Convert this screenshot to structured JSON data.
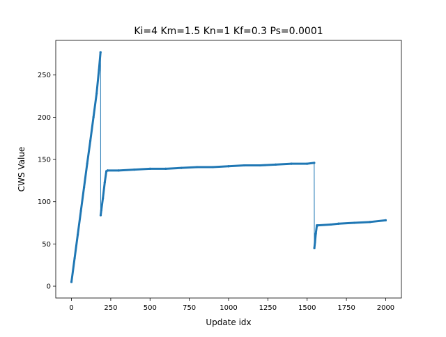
{
  "chart_data": {
    "type": "line",
    "title": "Ki=4 Km=1.5 Kn=1 Kf=0.3 Ps=0.0001",
    "xlabel": "Update idx",
    "ylabel": "CWS Value",
    "xlim": [
      -100,
      2100
    ],
    "ylim": [
      -14,
      291
    ],
    "x_ticks": [
      0,
      250,
      500,
      750,
      1000,
      1250,
      1500,
      1750,
      2000
    ],
    "y_ticks": [
      0,
      50,
      100,
      150,
      200,
      250
    ],
    "grid": false,
    "legend": "none",
    "series": [
      {
        "color": "#1f77b4",
        "x": [
          0,
          20,
          40,
          60,
          80,
          100,
          120,
          140,
          160,
          175,
          185,
          186,
          190,
          200,
          212,
          222,
          230,
          300,
          400,
          500,
          600,
          700,
          800,
          900,
          1000,
          1100,
          1200,
          1300,
          1400,
          1500,
          1545,
          1546,
          1550,
          1555,
          1562,
          1570,
          1650,
          1700,
          1800,
          1900,
          2000
        ],
        "y": [
          5,
          33,
          61,
          89,
          117,
          145,
          172,
          200,
          228,
          256,
          277,
          84,
          90,
          104,
          123,
          136,
          137,
          137,
          138,
          139,
          139,
          140,
          141,
          141,
          142,
          143,
          143,
          144,
          145,
          145,
          146,
          45,
          52,
          62,
          72,
          72,
          73,
          74,
          75,
          76,
          78
        ]
      }
    ]
  }
}
